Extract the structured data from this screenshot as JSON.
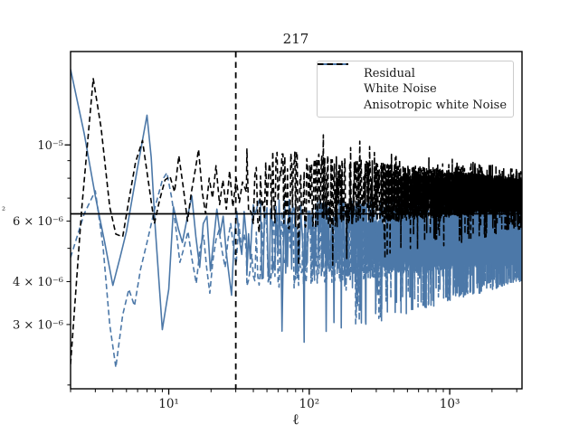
{
  "figure": {
    "title": "217",
    "background": "#ffffff",
    "text_color": "#1a1a1a",
    "axis_color": "#000000",
    "ylabel_fragment": "²"
  },
  "legend": {
    "position": "upper right",
    "border_color": "#cccccc",
    "items": [
      {
        "label": "Residual",
        "color": "#4c78a8",
        "dash": "solid"
      },
      {
        "label": "White Noise",
        "color": "#4c78a8",
        "dash": "dashed"
      },
      {
        "label": "Anisotropic white Noise",
        "color": "#000000",
        "dash": "dashed"
      }
    ]
  },
  "chart_data": {
    "type": "line",
    "title": "217",
    "xlabel": "ℓ",
    "ylabel": "",
    "xscale": "log",
    "yscale": "log",
    "xlim": [
      2,
      3270
    ],
    "ylim": [
      1.95e-06,
      1.87e-05
    ],
    "grid": false,
    "legend_position": "upper right",
    "xticks": [
      {
        "value": 10,
        "label": "10¹"
      },
      {
        "value": 100,
        "label": "10²"
      },
      {
        "value": 1000,
        "label": "10³"
      }
    ],
    "xminorticks": [
      2,
      3,
      4,
      5,
      6,
      7,
      8,
      9,
      20,
      30,
      40,
      50,
      60,
      70,
      80,
      90,
      200,
      300,
      400,
      500,
      600,
      700,
      800,
      900,
      2000,
      3000
    ],
    "yticks": [
      {
        "value": 1e-05,
        "label": "10⁻⁵",
        "major": true
      },
      {
        "value": 6e-06,
        "label": "6 × 10⁻⁶",
        "major": false
      },
      {
        "value": 4e-06,
        "label": "4 × 10⁻⁶",
        "major": false
      },
      {
        "value": 3e-06,
        "label": "3 × 10⁻⁶",
        "major": false
      }
    ],
    "yminorticks": [
      2e-06,
      5e-06,
      7e-06,
      8e-06,
      9e-06
    ],
    "reference_lines": [
      {
        "orientation": "horizontal",
        "value": 6.3e-06,
        "style": "solid",
        "color": "#000000",
        "width": 1.8
      },
      {
        "orientation": "vertical",
        "value": 30,
        "style": "dashed",
        "color": "#000000",
        "width": 1.8
      }
    ],
    "series": [
      {
        "name": "Residual",
        "color": "#4c78a8",
        "dash": null,
        "width": 1.6,
        "points": [
          [
            2,
            1.66e-05
          ],
          [
            2.5,
            1.08e-05
          ],
          [
            3,
            7.1e-06
          ],
          [
            3.5,
            5.2e-06
          ],
          [
            4,
            3.9e-06
          ],
          [
            4.5,
            4.7e-06
          ],
          [
            5,
            5.6e-06
          ],
          [
            6,
            8.6e-06
          ],
          [
            7,
            1.22e-05
          ],
          [
            7.5,
            9.2e-06
          ],
          [
            8,
            5.8e-06
          ],
          [
            9,
            2.9e-06
          ],
          [
            10,
            3.8e-06
          ],
          [
            10.8,
            6.6e-06
          ],
          [
            11.7,
            5.7e-06
          ],
          [
            12.5,
            5.2e-06
          ],
          [
            13.5,
            6.1e-06
          ],
          [
            14.6,
            7.1e-06
          ],
          [
            15.6,
            5.4e-06
          ],
          [
            16.6,
            4.4e-06
          ],
          [
            17.6,
            5.9e-06
          ],
          [
            18.7,
            6.2e-06
          ],
          [
            19.8,
            4.3e-06
          ],
          [
            20.9,
            5.3e-06
          ],
          [
            22,
            6.5e-06
          ],
          [
            23.2,
            5.5e-06
          ],
          [
            24.4,
            6.2e-06
          ],
          [
            25.6,
            4.9e-06
          ],
          [
            26.8,
            4.2e-06
          ],
          [
            28,
            3.65e-06
          ],
          [
            29.2,
            5.3e-06
          ],
          [
            30.5,
            6.4e-06
          ],
          [
            31.8,
            5.3e-06
          ],
          [
            33.1,
            4.8e-06
          ],
          [
            34.4,
            6.4e-06
          ],
          [
            35.7,
            5.4e-06
          ]
        ],
        "noise": {
          "l_from": 36,
          "l_to": 3270,
          "level_from": 5.2e-06,
          "level_to": 5.05e-06,
          "amp_from": 0.115,
          "amp_to": 0.033,
          "seed": 101,
          "spike_prob": 0.2,
          "spike_mult": 1.3,
          "spike_k": 0,
          "dip_prob": 0.06,
          "dip_k": 2.0
        }
      },
      {
        "name": "White Noise",
        "color": "#4c78a8",
        "dash": "6,3.6",
        "width": 1.6,
        "points": [
          [
            2,
            4.7e-06
          ],
          [
            2.5,
            6.3e-06
          ],
          [
            3,
            7.35e-06
          ],
          [
            3.4,
            5.1e-06
          ],
          [
            3.8,
            3e-06
          ],
          [
            4.2,
            2.25e-06
          ],
          [
            4.7,
            3.2e-06
          ],
          [
            5.2,
            3.8e-06
          ],
          [
            5.7,
            3.4e-06
          ],
          [
            6.3,
            4.35e-06
          ],
          [
            7,
            5.2e-06
          ],
          [
            8,
            6.6e-06
          ],
          [
            9,
            7.9e-06
          ],
          [
            9.7,
            8.3e-06
          ],
          [
            10.5,
            7e-06
          ],
          [
            11.2,
            5.8e-06
          ],
          [
            12,
            4.55e-06
          ],
          [
            12.8,
            5e-06
          ],
          [
            13.7,
            5.6e-06
          ],
          [
            14.7,
            4.6e-06
          ],
          [
            15.7,
            3.95e-06
          ],
          [
            16.7,
            5e-06
          ],
          [
            17.7,
            5.45e-06
          ],
          [
            18.6,
            4.4e-06
          ],
          [
            19.6,
            3.7e-06
          ],
          [
            20.6,
            4.6e-06
          ],
          [
            21.7,
            5.3e-06
          ],
          [
            22.8,
            5.65e-06
          ],
          [
            24,
            4.9e-06
          ],
          [
            25.2,
            4.4e-06
          ],
          [
            26.4,
            5.3e-06
          ],
          [
            27.6,
            5.9e-06
          ],
          [
            28.9,
            5e-06
          ],
          [
            30.2,
            4.5e-06
          ],
          [
            31.5,
            5.9e-06
          ],
          [
            33,
            5e-06
          ],
          [
            34.5,
            5.5e-06
          ],
          [
            35.7,
            4.9e-06
          ]
        ],
        "noise": {
          "l_from": 36,
          "l_to": 3270,
          "level_from": 4.95e-06,
          "level_to": 5e-06,
          "amp_from": 0.125,
          "amp_to": 0.034,
          "seed": 202,
          "spike_prob": 0,
          "spike_mult": 1,
          "spike_k": 0,
          "dip_prob": 0.05,
          "dip_k": 1.6
        }
      },
      {
        "name": "Anisotropic white Noise",
        "color": "#000000",
        "dash": "6,3.6",
        "width": 1.6,
        "points": [
          [
            2,
            2.3e-06
          ],
          [
            2.4,
            6.5e-06
          ],
          [
            2.9,
            1.56e-05
          ],
          [
            3.3,
            1.12e-05
          ],
          [
            3.8,
            6.6e-06
          ],
          [
            4.2,
            5.5e-06
          ],
          [
            4.7,
            5.4e-06
          ],
          [
            5.2,
            6.9e-06
          ],
          [
            5.8,
            8.9e-06
          ],
          [
            6.5,
            1.03e-05
          ],
          [
            7.2,
            7.7e-06
          ],
          [
            7.9,
            5.9e-06
          ],
          [
            8.6,
            6.9e-06
          ],
          [
            9.4,
            7.9e-06
          ],
          [
            10.2,
            8.1e-06
          ],
          [
            11,
            7.3e-06
          ],
          [
            11.8,
            9.3e-06
          ],
          [
            12.7,
            7.5e-06
          ],
          [
            13.6,
            6e-06
          ],
          [
            14.5,
            7.3e-06
          ],
          [
            15.4,
            8.4e-06
          ],
          [
            16.3,
            9.7e-06
          ],
          [
            17.3,
            7.3e-06
          ],
          [
            18.3,
            6.3e-06
          ],
          [
            19.4,
            8e-06
          ],
          [
            20.5,
            7e-06
          ],
          [
            21.7,
            8.7e-06
          ],
          [
            23,
            6.7e-06
          ],
          [
            24.3,
            7.9e-06
          ],
          [
            25.7,
            6.5e-06
          ],
          [
            27.1,
            8.4e-06
          ],
          [
            28.6,
            6.6e-06
          ],
          [
            30.2,
            8e-06
          ],
          [
            31.8,
            6.8e-06
          ],
          [
            33.5,
            7.8e-06
          ],
          [
            35.7,
            7.3e-06
          ]
        ],
        "noise": {
          "l_from": 36,
          "l_to": 3270,
          "level_from": 7.4e-06,
          "level_to": 7.15e-06,
          "amp_from": 0.13,
          "amp_to": 0.046,
          "seed": 303,
          "spike_prob": 0.07,
          "spike_mult": 0,
          "spike_k": 0.55,
          "dip_prob": 0.05,
          "dip_k": 1.2
        }
      }
    ]
  }
}
